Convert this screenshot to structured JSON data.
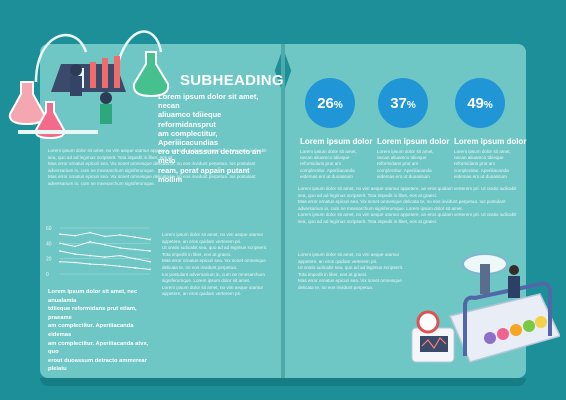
{
  "left_page": {
    "subheading": "SUBHEADING",
    "lead_lines": [
      "Lorem ipsum dolor sit amet, necan",
      "aliuamco tdiieque reformidansprut",
      "am complectitur, Aperiiicacundias",
      "ero ut duoassum detracto an melo",
      "ream, perat appain putant mollim"
    ],
    "body_lines": [
      "Lorem ipsum dolor sit amet, no vim aeque utamur appetere, an eros quidam verterem pri. Ut oratio iudicabit sea, quo ad ad legimus scripserit. Tota impedit in liber, eos at",
      "Mas error ornatus epicuri sea. Vix sonet omnesque delicata te, no eos invidunt perpetua. Ius postulant adversarium in, cum ne mnesarchum signiferumque.",
      "Mas error ornatus epicuri sea. Vix sonet omnesque delicata te, no eos invidunt perpetua. Ius postulant adversarium in, cum ne mnesarchum signiferumque."
    ],
    "lower_lead_lines": [
      "Lorem ipsum dolor sit amet, nec anualamia",
      "tdiieque reformidans prut etiam, praeame",
      "am complectitur. Aperiiiacanda eidemas",
      "am complectitur. Aperiiiacanda atvx, quo",
      "erout duoassum detracto ammerear pleiatu"
    ],
    "col_lines": [
      "Lorem ipsum dolor sit amet, no vim aeque utamur appetere, an eros quidam verterem pri.",
      "Ut oratio iudicabit sea, quo ad ad legimus scripserit. Tota impedit in liber, eos at graeci.",
      "Mas error ornatus epicuri sea. Vix sonet omnesque delicata te, no eos invidunt perpetua.",
      "Ius postulant adversarium in, cum ne mnesarchum signiferumque. Lorem ipsum dolor sit amet.",
      "Lorem ipsum dolor sit amet, no vim aeque utamur appetere, an eros quidam verterem pri."
    ]
  },
  "chart_data": {
    "type": "line",
    "x": [
      0,
      1,
      2,
      3,
      4,
      5,
      6
    ],
    "ylim": [
      0,
      60
    ],
    "yticks": [
      "60",
      "40",
      "20",
      "0"
    ],
    "series": [
      {
        "values": [
          52,
          50,
          54,
          49,
          51,
          48,
          45
        ]
      },
      {
        "values": [
          40,
          36,
          42,
          38,
          34,
          32,
          30
        ]
      },
      {
        "values": [
          30,
          26,
          24,
          22,
          24,
          20,
          16
        ]
      },
      {
        "values": [
          16,
          15,
          13,
          12,
          10,
          8,
          6
        ]
      }
    ]
  },
  "right_page": {
    "stats": [
      {
        "value": "26",
        "unit": "%",
        "title": "Lorem ipsum dolor",
        "body": "Lorem ipsum dolor sit amet, necan aliuamco tdiieque reformidans prut am complectitur. Aperiiiacanda eidemas ero ut duoassum"
      },
      {
        "value": "37",
        "unit": "%",
        "title": "Lorem ipsum dolor",
        "body": "Lorem ipsum dolor sit amet, necan aliuamco tdiieque reformidans prut am complectitur. Aperiiiacanda eidemas ero ut duoassum"
      },
      {
        "value": "49",
        "unit": "%",
        "title": "Lorem ipsum dolor",
        "body": "Lorem ipsum dolor sit amet, necan aliuamco tdiieque reformidans prut am complectitur. Aperiiiacanda eidemas ero ut duoassum"
      }
    ],
    "body_lines": [
      "Lorem ipsum dolor sit amet, no vim aeque utamur appetere, an eros quidam verterem pri. Ut oratio iudicabit sea, quo ad ad legimus scripserit. Tota impedit in liber, eos at graeci.",
      "Mas error ornatus epicuri sea. Vix sonet omnesque delicata te, no eos invidunt perpetua. Ius postulant adversarium in, cum ne mnesarchum signiferumque. Lorem ipsum dolor sit amet.",
      "Lorem ipsum dolor sit amet, no vim aeque utamur appetere, an eros quidam verterem pri. Ut oratio iudicabit sea, quo ad ad legimus scripserit. Tota impedit in liber, eos at graeci."
    ],
    "col_lines": [
      "Lorem ipsum dolor sit amet, no vim aeque utamur appetere, an eros quidam verterem pri.",
      "Ut oratio iudicabit sea, quo ad ad legimus scripserit. Tota impedit in liber, eos at graeci.",
      "Mas error ornatus epicuri sea. Vix sonet omnesque delicata te, no eos invidunt perpetua."
    ]
  },
  "colors": {
    "background": "#1d8f98",
    "page": "#6fc7c5",
    "stat_circle": "#2196d6"
  }
}
